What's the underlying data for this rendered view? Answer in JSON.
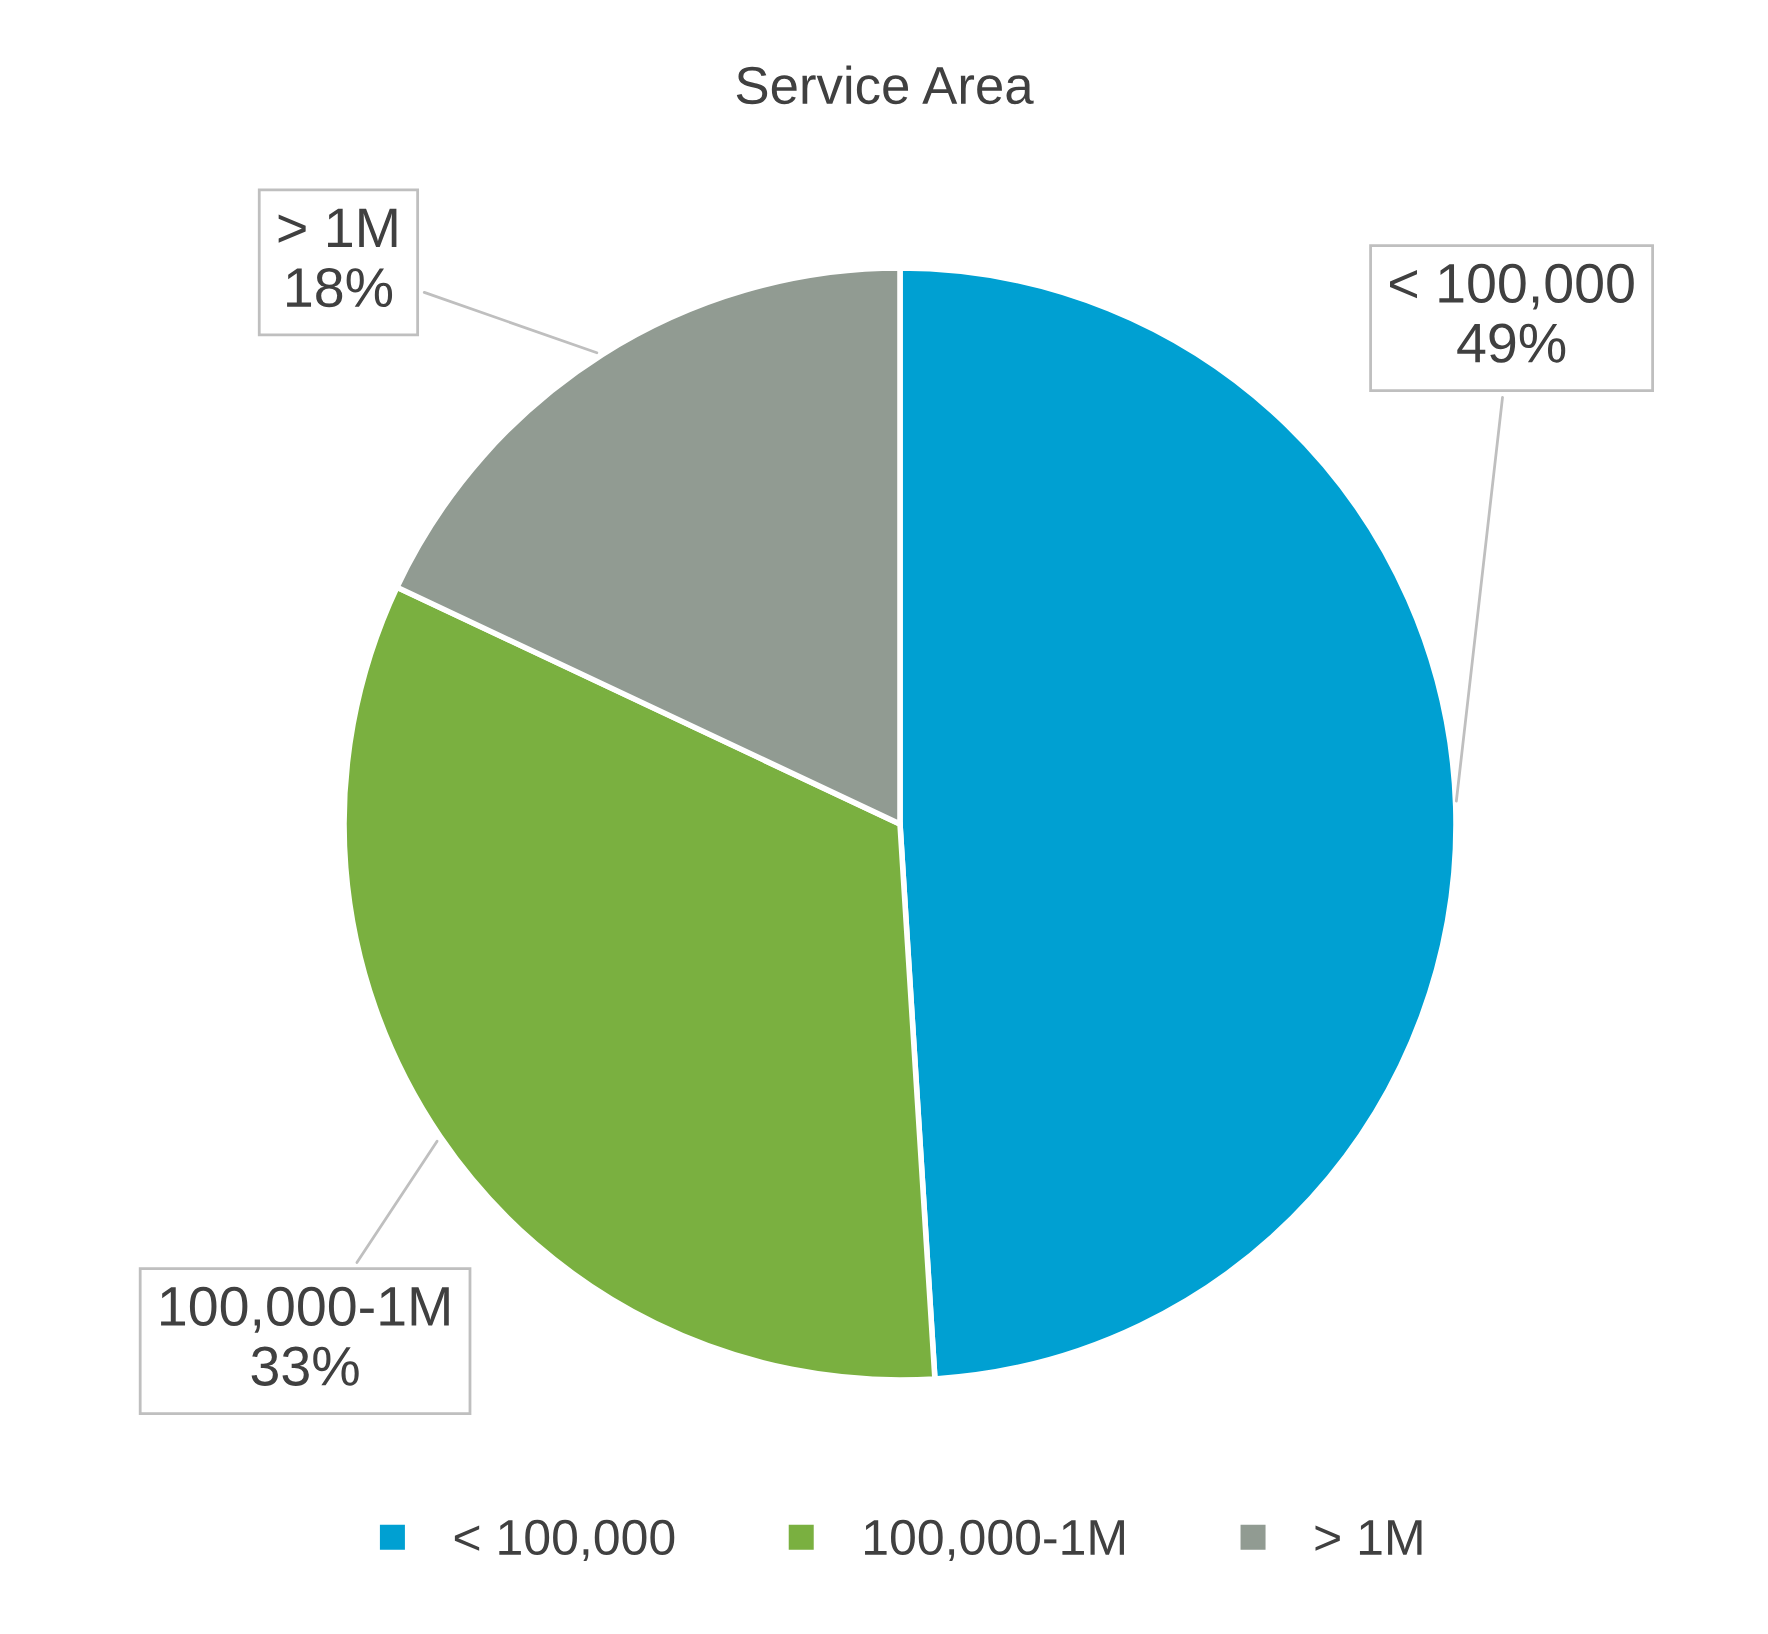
{
  "chart_data": {
    "type": "pie",
    "title": "Service Area",
    "categories": [
      "< 100,000",
      "100,000-1M",
      "> 1M"
    ],
    "values": [
      49,
      33,
      18
    ],
    "value_labels": [
      "49%",
      "33%",
      "18%"
    ],
    "colors": [
      "#00a0d2",
      "#7ab040",
      "#919b92"
    ],
    "legend": "bottom"
  }
}
